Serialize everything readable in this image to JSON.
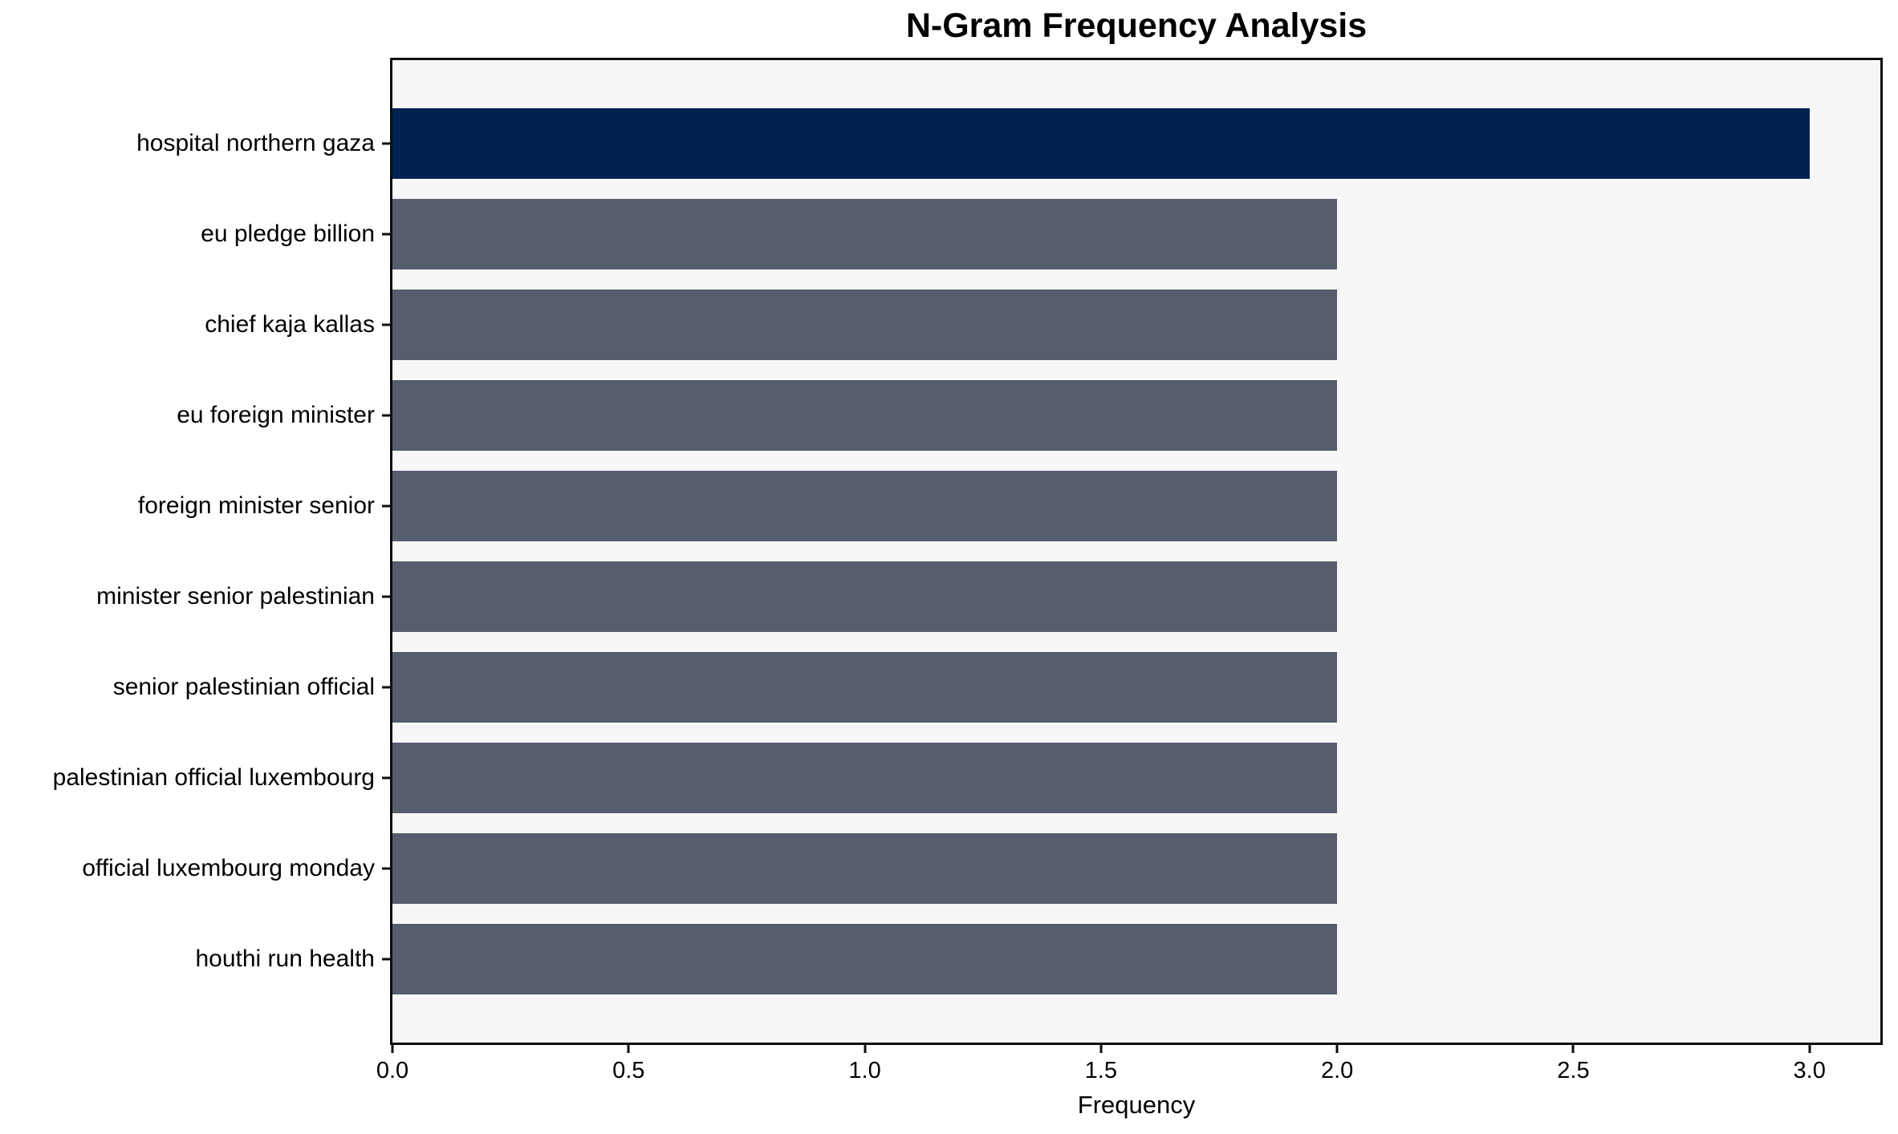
{
  "chart_data": {
    "type": "bar",
    "orientation": "horizontal",
    "title": "N-Gram Frequency Analysis",
    "xlabel": "Frequency",
    "ylabel": "",
    "categories": [
      "hospital northern gaza",
      "eu pledge billion",
      "chief kaja kallas",
      "eu foreign minister",
      "foreign minister senior",
      "minister senior palestinian",
      "senior palestinian official",
      "palestinian official luxembourg",
      "official luxembourg monday",
      "houthi run health"
    ],
    "values": [
      3,
      2,
      2,
      2,
      2,
      2,
      2,
      2,
      2,
      2
    ],
    "bar_colors": [
      "#002250",
      "#565d6c",
      "#565d6c",
      "#565d6c",
      "#565d6c",
      "#565d6c",
      "#565d6c",
      "#565d6c",
      "#565d6c",
      "#565d6c"
    ],
    "highlight_color": "#002250",
    "base_color": "#565d6c",
    "xlim": [
      0,
      3.15
    ],
    "xticks": [
      0.0,
      0.5,
      1.0,
      1.5,
      2.0,
      2.5,
      3.0
    ],
    "xtick_labels": [
      "0.0",
      "0.5",
      "1.0",
      "1.5",
      "2.0",
      "2.5",
      "3.0"
    ],
    "grid": false,
    "legend_position": "none",
    "plot_background": "#f7f7f7",
    "figure_background": "#ffffff",
    "spine_color": "#0d0d0d"
  }
}
